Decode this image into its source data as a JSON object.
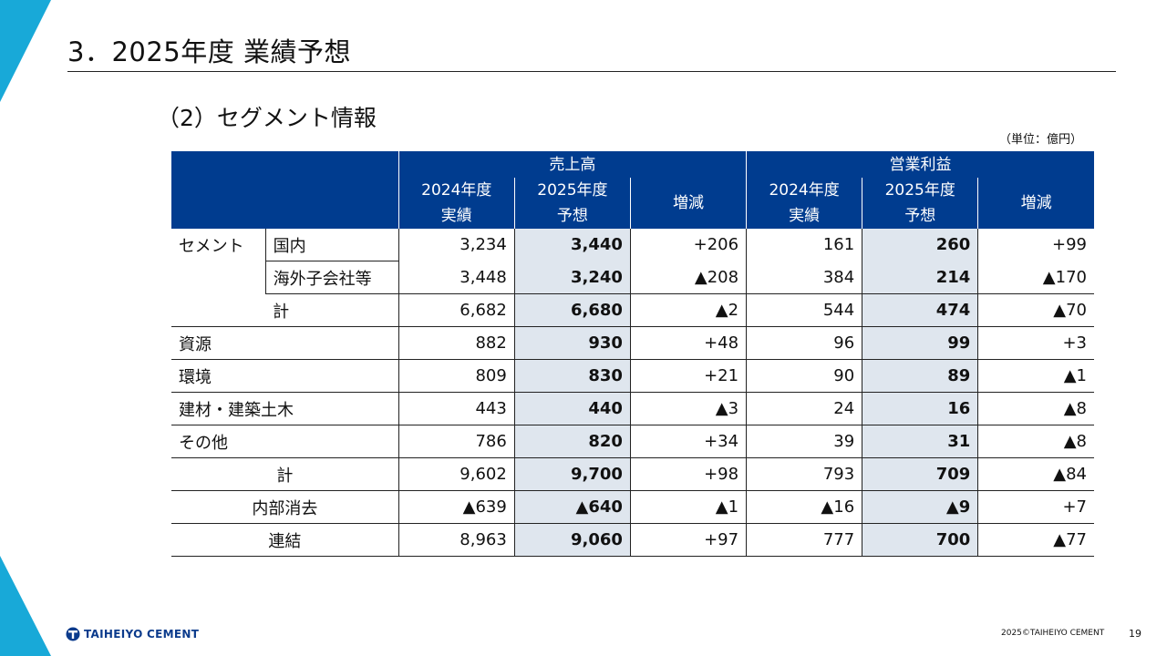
{
  "title": "3．2025年度 業績予想",
  "subtitle": "（2）セグメント情報",
  "unit": "（単位：億円）",
  "table": {
    "group_headers": [
      "売上高",
      "営業利益"
    ],
    "col_headers": [
      {
        "line1": "2024年度",
        "line2": "実績"
      },
      {
        "line1": "2025年度",
        "line2": "予想"
      },
      {
        "line1": "増減",
        "line2": ""
      },
      {
        "line1": "2024年度",
        "line2": "実績"
      },
      {
        "line1": "2025年度",
        "line2": "予想"
      },
      {
        "line1": "増減",
        "line2": ""
      }
    ],
    "rows": [
      {
        "seg": "セメント",
        "sub": "国内",
        "values": [
          "3,234",
          "3,440",
          "+206",
          "161",
          "260",
          "+99"
        ]
      },
      {
        "seg": "",
        "sub": "海外子会社等",
        "values": [
          "3,448",
          "3,240",
          "▲208",
          "384",
          "214",
          "▲170"
        ]
      },
      {
        "seg": "",
        "sub": "計",
        "values": [
          "6,682",
          "6,680",
          "▲2",
          "544",
          "474",
          "▲70"
        ]
      },
      {
        "seg": "資源",
        "sub": "",
        "values": [
          "882",
          "930",
          "+48",
          "96",
          "99",
          "+3"
        ]
      },
      {
        "seg": "環境",
        "sub": "",
        "values": [
          "809",
          "830",
          "+21",
          "90",
          "89",
          "▲1"
        ]
      },
      {
        "seg": "建材・建築土木",
        "sub": "",
        "values": [
          "443",
          "440",
          "▲3",
          "24",
          "16",
          "▲8"
        ]
      },
      {
        "seg": "その他",
        "sub": "",
        "values": [
          "786",
          "820",
          "+34",
          "39",
          "31",
          "▲8"
        ]
      },
      {
        "seg": "計",
        "sub": "",
        "values": [
          "9,602",
          "9,700",
          "+98",
          "793",
          "709",
          "▲84"
        ]
      },
      {
        "seg": "内部消去",
        "sub": "",
        "values": [
          "▲639",
          "▲640",
          "▲1",
          "▲16",
          "▲9",
          "+7"
        ]
      },
      {
        "seg": "連結",
        "sub": "",
        "values": [
          "8,963",
          "9,060",
          "+97",
          "777",
          "700",
          "▲77"
        ]
      }
    ]
  },
  "footer": {
    "logo_text": "TAIHEIYO CEMENT",
    "copyright": "2025©TAIHEIYO CEMENT",
    "page_number": "19"
  },
  "colors": {
    "header_bg": "#003c8f",
    "forecast_bg": "#dfe6ee",
    "accent_cyan": "#18a9d8",
    "logo_blue": "#0b3b8c"
  }
}
